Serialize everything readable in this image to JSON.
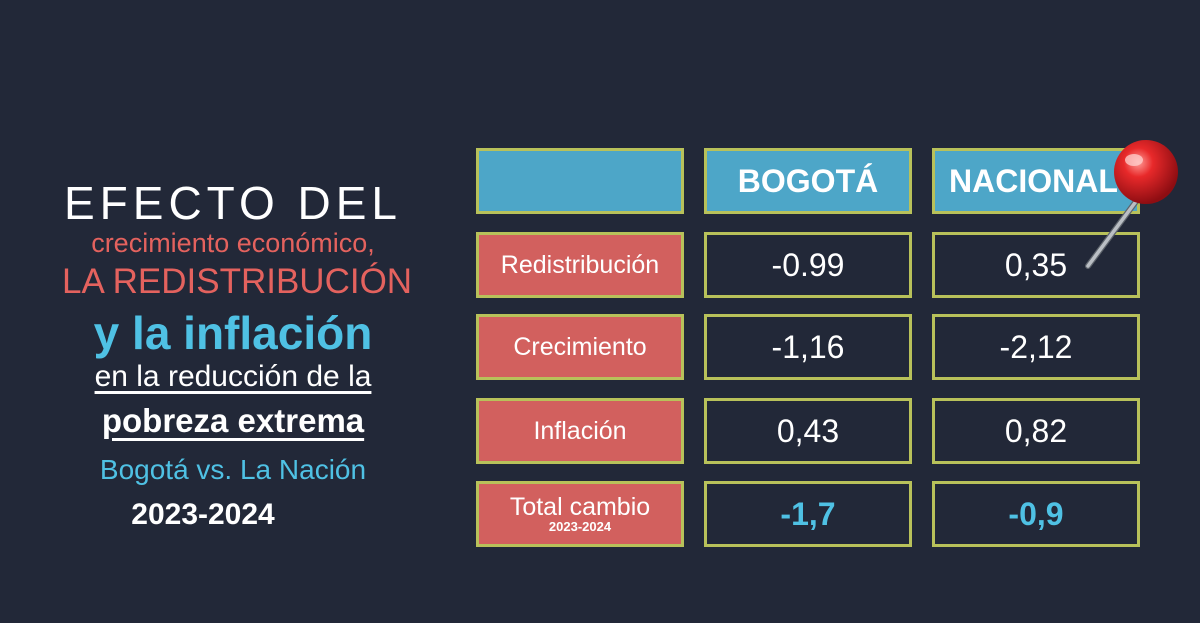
{
  "title": {
    "line1": "EFECTO DEL",
    "line2": "crecimiento económico,",
    "line3": "LA REDISTRIBUCIÓN",
    "line4": "y la inflación",
    "line5": "en la reducción de la",
    "line6": "pobreza extrema",
    "line7": "Bogotá vs. La Nación",
    "line8": "2023-2024"
  },
  "colors": {
    "background": "#222838",
    "header_fill": "#4da6c8",
    "label_fill": "#d2605e",
    "border": "#b8c15a",
    "accent_blue": "#4fc1e4"
  },
  "chart_data": {
    "type": "table",
    "columns": [
      "",
      "BOGOTÁ",
      "NACIONAL"
    ],
    "rows": [
      {
        "label": "Redistribución",
        "bogota": "-0.99",
        "nacional": "0,35"
      },
      {
        "label": "Crecimiento",
        "bogota": "-1,16",
        "nacional": "-2,12"
      },
      {
        "label": "Inflación",
        "bogota": "0,43",
        "nacional": "0,82"
      }
    ],
    "total": {
      "label": "Total cambio",
      "sublabel": "2023-2024",
      "bogota": "-1,7",
      "nacional": "-0,9"
    }
  },
  "decoration": {
    "icon": "push-pin-icon"
  }
}
